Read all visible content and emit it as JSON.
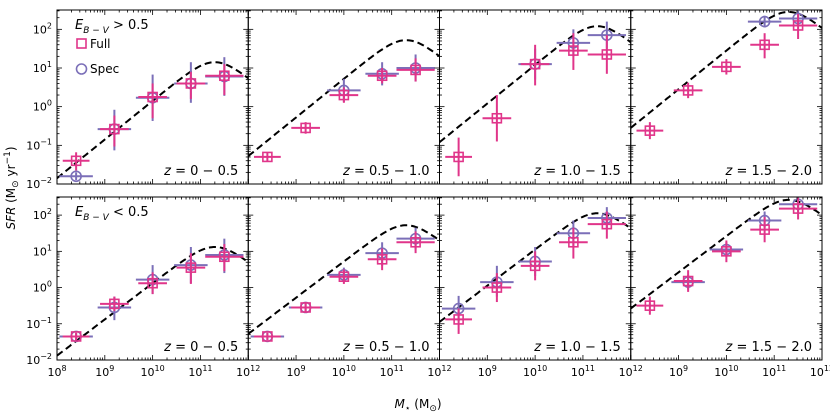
{
  "chart_data": {
    "type": "scatter",
    "xlabel_main": "M",
    "xlabel_sub": "⋆",
    "xlabel_unit": " (M",
    "xlabel_unit_sub": "⊙",
    "xlabel_close": ")",
    "ylabel_main": "SFR",
    "ylabel_unit": " (M",
    "ylabel_unit_sub": "⊙",
    "ylabel_yr": " yr",
    "ylabel_exp": "−1",
    "ylabel_close": ")",
    "xlim_log10": [
      8,
      12
    ],
    "ylim_log10": [
      -2,
      2.5
    ],
    "x_tick_labels": [
      {
        "base": "10",
        "exp": "8"
      },
      {
        "base": "10",
        "exp": "9"
      },
      {
        "base": "10",
        "exp": "10"
      },
      {
        "base": "10",
        "exp": "11"
      },
      {
        "base": "10",
        "exp": "12"
      }
    ],
    "y_tick_labels": [
      {
        "base": "10",
        "exp": "−2"
      },
      {
        "base": "10",
        "exp": "−1"
      },
      {
        "base": "10",
        "exp": "0"
      },
      {
        "base": "10",
        "exp": "1"
      },
      {
        "base": "10",
        "exp": "2"
      }
    ],
    "colors": {
      "full": "#e0358a",
      "spec": "#7b6fb8",
      "model": "#000000"
    },
    "legend": {
      "full": "Full",
      "spec": "Spec"
    },
    "row_labels": [
      {
        "e": "E",
        "sub": "B − V",
        "rest": " > 0.5"
      },
      {
        "e": "E",
        "sub": "B − V",
        "rest": " < 0.5"
      }
    ],
    "zlabels": [
      "z = 0 − 0.5",
      "z = 0.5 − 1.0",
      "z = 1.0 − 1.5",
      "z = 1.5 − 2.0"
    ],
    "model_peak_log10": [
      [
        1.15,
        1.72,
        2.08,
        2.45
      ],
      [
        1.12,
        1.72,
        2.05,
        2.42
      ]
    ],
    "panels": [
      [
        {
          "full": [
            {
              "x": 8.4,
              "y": -1.4,
              "xe": 0.28,
              "ye": [
                0.25,
                0.22
              ]
            },
            {
              "x": 9.2,
              "y": -0.58,
              "xe": 0.3,
              "ye": [
                0.45,
                0.35
              ]
            },
            {
              "x": 10.0,
              "y": 0.25,
              "xe": 0.3,
              "ye": [
                0.55,
                0.35
              ]
            },
            {
              "x": 10.8,
              "y": 0.6,
              "xe": 0.3,
              "ye": [
                0.4,
                0.3
              ]
            },
            {
              "x": 11.5,
              "y": 0.8,
              "xe": 0.4,
              "ye": [
                0.5,
                0.3
              ]
            }
          ],
          "spec": [
            {
              "x": 8.4,
              "y": -1.8,
              "xe": 0.35,
              "ye": [
                0.1,
                0.1
              ]
            },
            {
              "x": 9.2,
              "y": -0.58,
              "xe": 0.35,
              "ye": [
                0.55,
                0.5
              ]
            },
            {
              "x": 10.0,
              "y": 0.23,
              "xe": 0.35,
              "ye": [
                0.6,
                0.6
              ]
            },
            {
              "x": 10.8,
              "y": 0.6,
              "xe": 0.35,
              "ye": [
                0.5,
                0.55
              ]
            },
            {
              "x": 11.5,
              "y": 0.78,
              "xe": 0.4,
              "ye": [
                0.5,
                0.5
              ]
            }
          ]
        },
        {
          "full": [
            {
              "x": 8.4,
              "y": -1.3,
              "xe": 0.28,
              "ye": [
                0.12,
                0.12
              ]
            },
            {
              "x": 9.2,
              "y": -0.55,
              "xe": 0.3,
              "ye": [
                0.15,
                0.15
              ]
            },
            {
              "x": 10.0,
              "y": 0.3,
              "xe": 0.3,
              "ye": [
                0.2,
                0.2
              ]
            },
            {
              "x": 10.8,
              "y": 0.8,
              "xe": 0.3,
              "ye": [
                0.2,
                0.2
              ]
            },
            {
              "x": 11.5,
              "y": 0.95,
              "xe": 0.4,
              "ye": [
                0.3,
                0.3
              ]
            }
          ],
          "spec": [
            {
              "x": 10.0,
              "y": 0.42,
              "xe": 0.35,
              "ye": [
                0.3,
                0.3
              ]
            },
            {
              "x": 10.8,
              "y": 0.85,
              "xe": 0.35,
              "ye": [
                0.3,
                0.3
              ]
            },
            {
              "x": 11.5,
              "y": 1.0,
              "xe": 0.4,
              "ye": [
                0.35,
                0.35
              ]
            }
          ]
        },
        {
          "full": [
            {
              "x": 8.4,
              "y": -1.3,
              "xe": 0.28,
              "ye": [
                0.5,
                0.5
              ]
            },
            {
              "x": 9.2,
              "y": -0.3,
              "xe": 0.3,
              "ye": [
                0.6,
                0.6
              ]
            },
            {
              "x": 10.0,
              "y": 1.1,
              "xe": 0.3,
              "ye": [
                0.55,
                0.5
              ]
            },
            {
              "x": 10.8,
              "y": 1.45,
              "xe": 0.3,
              "ye": [
                0.5,
                0.45
              ]
            },
            {
              "x": 11.5,
              "y": 1.35,
              "xe": 0.4,
              "ye": [
                0.5,
                0.5
              ]
            }
          ],
          "spec": [
            {
              "x": 10.0,
              "y": 1.1,
              "xe": 0.35,
              "ye": [
                0.4,
                0.4
              ]
            },
            {
              "x": 10.8,
              "y": 1.65,
              "xe": 0.35,
              "ye": [
                0.35,
                0.35
              ]
            },
            {
              "x": 11.5,
              "y": 1.85,
              "xe": 0.4,
              "ye": [
                0.35,
                0.35
              ]
            }
          ]
        },
        {
          "full": [
            {
              "x": 8.4,
              "y": -0.62,
              "xe": 0.28,
              "ye": [
                0.22,
                0.22
              ]
            },
            {
              "x": 9.2,
              "y": 0.42,
              "xe": 0.3,
              "ye": [
                0.2,
                0.2
              ]
            },
            {
              "x": 10.0,
              "y": 1.03,
              "xe": 0.3,
              "ye": [
                0.2,
                0.2
              ]
            },
            {
              "x": 10.8,
              "y": 1.6,
              "xe": 0.3,
              "ye": [
                0.35,
                0.3
              ]
            },
            {
              "x": 11.5,
              "y": 2.1,
              "xe": 0.4,
              "ye": [
                0.35,
                0.3
              ]
            }
          ],
          "spec": [
            {
              "x": 10.8,
              "y": 2.2,
              "xe": 0.35,
              "ye": [
                0.15,
                0.15
              ]
            },
            {
              "x": 11.5,
              "y": 2.28,
              "xe": 0.4,
              "ye": [
                0.2,
                0.2
              ]
            }
          ]
        }
      ],
      [
        {
          "full": [
            {
              "x": 8.4,
              "y": -1.35,
              "xe": 0.28,
              "ye": [
                0.1,
                0.1
              ]
            },
            {
              "x": 9.2,
              "y": -0.45,
              "xe": 0.3,
              "ye": [
                0.2,
                0.2
              ]
            },
            {
              "x": 10.0,
              "y": 0.12,
              "xe": 0.3,
              "ye": [
                0.3,
                0.3
              ]
            },
            {
              "x": 10.8,
              "y": 0.55,
              "xe": 0.3,
              "ye": [
                0.45,
                0.4
              ]
            },
            {
              "x": 11.5,
              "y": 0.85,
              "xe": 0.4,
              "ye": [
                0.4,
                0.35
              ]
            }
          ],
          "spec": [
            {
              "x": 8.4,
              "y": -1.35,
              "xe": 0.35,
              "ye": [
                0.1,
                0.1
              ]
            },
            {
              "x": 9.2,
              "y": -0.55,
              "xe": 0.35,
              "ye": [
                0.35,
                0.3
              ]
            },
            {
              "x": 10.0,
              "y": 0.22,
              "xe": 0.35,
              "ye": [
                0.4,
                0.4
              ]
            },
            {
              "x": 10.8,
              "y": 0.62,
              "xe": 0.35,
              "ye": [
                0.5,
                0.5
              ]
            },
            {
              "x": 11.5,
              "y": 0.9,
              "xe": 0.4,
              "ye": [
                0.5,
                0.45
              ]
            }
          ]
        },
        {
          "full": [
            {
              "x": 8.4,
              "y": -1.35,
              "xe": 0.28,
              "ye": [
                0.1,
                0.1
              ]
            },
            {
              "x": 9.2,
              "y": -0.55,
              "xe": 0.3,
              "ye": [
                0.15,
                0.15
              ]
            },
            {
              "x": 10.0,
              "y": 0.3,
              "xe": 0.3,
              "ye": [
                0.2,
                0.2
              ]
            },
            {
              "x": 10.8,
              "y": 0.78,
              "xe": 0.3,
              "ye": [
                0.3,
                0.3
              ]
            },
            {
              "x": 11.5,
              "y": 1.25,
              "xe": 0.4,
              "ye": [
                0.3,
                0.3
              ]
            }
          ],
          "spec": [
            {
              "x": 8.4,
              "y": -1.35,
              "xe": 0.35,
              "ye": [
                0.1,
                0.1
              ]
            },
            {
              "x": 9.2,
              "y": -0.55,
              "xe": 0.35,
              "ye": [
                0.15,
                0.15
              ]
            },
            {
              "x": 10.0,
              "y": 0.35,
              "xe": 0.35,
              "ye": [
                0.2,
                0.2
              ]
            },
            {
              "x": 10.8,
              "y": 0.95,
              "xe": 0.35,
              "ye": [
                0.35,
                0.3
              ]
            },
            {
              "x": 11.5,
              "y": 1.35,
              "xe": 0.4,
              "ye": [
                0.3,
                0.3
              ]
            }
          ]
        },
        {
          "full": [
            {
              "x": 8.4,
              "y": -0.88,
              "xe": 0.28,
              "ye": [
                0.4,
                0.3
              ]
            },
            {
              "x": 9.2,
              "y": 0.0,
              "xe": 0.3,
              "ye": [
                0.4,
                0.4
              ]
            },
            {
              "x": 10.0,
              "y": 0.6,
              "xe": 0.3,
              "ye": [
                0.4,
                0.4
              ]
            },
            {
              "x": 10.8,
              "y": 1.25,
              "xe": 0.3,
              "ye": [
                0.45,
                0.4
              ]
            },
            {
              "x": 11.5,
              "y": 1.75,
              "xe": 0.4,
              "ye": [
                0.4,
                0.35
              ]
            }
          ],
          "spec": [
            {
              "x": 8.4,
              "y": -0.58,
              "xe": 0.35,
              "ye": [
                0.35,
                0.35
              ]
            },
            {
              "x": 9.2,
              "y": 0.15,
              "xe": 0.35,
              "ye": [
                0.4,
                0.45
              ]
            },
            {
              "x": 10.0,
              "y": 0.72,
              "xe": 0.35,
              "ye": [
                0.4,
                0.4
              ]
            },
            {
              "x": 10.8,
              "y": 1.5,
              "xe": 0.35,
              "ye": [
                0.35,
                0.35
              ]
            },
            {
              "x": 11.5,
              "y": 1.92,
              "xe": 0.4,
              "ye": [
                0.3,
                0.3
              ]
            }
          ]
        },
        {
          "full": [
            {
              "x": 8.4,
              "y": -0.5,
              "xe": 0.28,
              "ye": [
                0.25,
                0.25
              ]
            },
            {
              "x": 9.2,
              "y": 0.18,
              "xe": 0.3,
              "ye": [
                0.3,
                0.3
              ]
            },
            {
              "x": 10.0,
              "y": 1.0,
              "xe": 0.3,
              "ye": [
                0.3,
                0.3
              ]
            },
            {
              "x": 10.8,
              "y": 1.6,
              "xe": 0.3,
              "ye": [
                0.35,
                0.35
              ]
            },
            {
              "x": 11.5,
              "y": 2.18,
              "xe": 0.4,
              "ye": [
                0.3,
                0.3
              ]
            }
          ],
          "spec": [
            {
              "x": 9.2,
              "y": 0.15,
              "xe": 0.35,
              "ye": [
                0.2,
                0.2
              ]
            },
            {
              "x": 10.0,
              "y": 1.05,
              "xe": 0.35,
              "ye": [
                0.2,
                0.2
              ]
            },
            {
              "x": 10.8,
              "y": 1.85,
              "xe": 0.35,
              "ye": [
                0.2,
                0.25
              ]
            },
            {
              "x": 11.5,
              "y": 2.3,
              "xe": 0.4,
              "ye": [
                0.2,
                0.2
              ]
            }
          ]
        }
      ]
    ]
  }
}
